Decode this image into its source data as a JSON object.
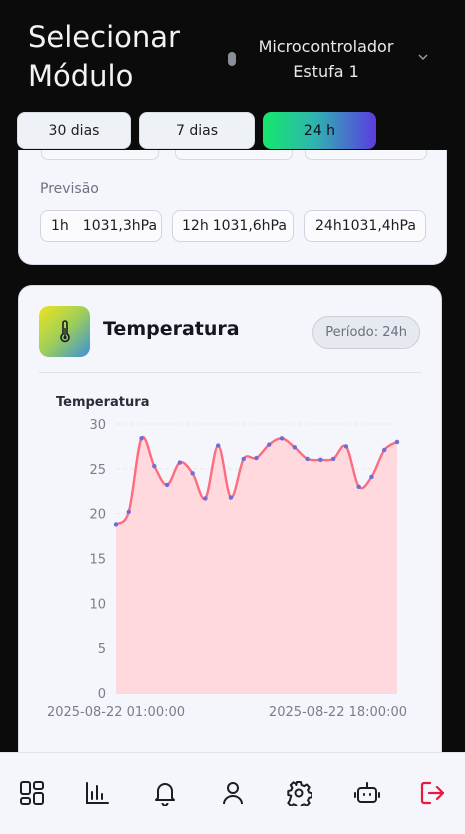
{
  "header": {
    "title_line1": "Selecionar",
    "title_line2": "Módulo",
    "microcontroller_line1": "Microcontrolador",
    "microcontroller_line2": "Estufa 1"
  },
  "filters": [
    {
      "label": "30 dias",
      "active": false
    },
    {
      "label": "7 dias",
      "active": false
    },
    {
      "label": "24 h",
      "active": true
    }
  ],
  "pressure_card": {
    "forecast_label": "Previsão",
    "forecast": [
      {
        "period": "1h",
        "value": "1031,3hPa"
      },
      {
        "period": "12h",
        "value": "1031,6hPa"
      },
      {
        "period": "24h",
        "value": "1031,4hPa"
      }
    ]
  },
  "temperature_card": {
    "title": "Temperatura",
    "period_badge": "Período: 24h",
    "icon": "thermometer-icon"
  },
  "chart_data": {
    "type": "area",
    "title": "Temperatura",
    "xlabel": "",
    "ylabel": "",
    "ylim": [
      0,
      30
    ],
    "y_ticks": [
      0,
      5,
      10,
      15,
      20,
      25,
      30
    ],
    "x_tick_labels": [
      "2025-08-22 01:00:00",
      "2025-08-22 18:00:00"
    ],
    "grid": true,
    "legend": "none",
    "line_color": "#ff6b7f",
    "fill_color": "#ffd9de",
    "point_color": "#6a6fd8",
    "series": [
      {
        "values": [
          18.8,
          20.2,
          28.4,
          25.3,
          23.2,
          25.7,
          24.5,
          21.7,
          27.6,
          21.8,
          26.1,
          26.2,
          27.7,
          28.4,
          27.4,
          26.1,
          26.0,
          26.1,
          27.5,
          23.0,
          24.1,
          27.1,
          28.0
        ]
      }
    ]
  },
  "nav": {
    "items": [
      "dashboard-icon",
      "chart-icon",
      "bell-icon",
      "user-icon",
      "gear-icon",
      "robot-icon",
      "logout-icon"
    ],
    "logout_color": "#e8193c"
  }
}
